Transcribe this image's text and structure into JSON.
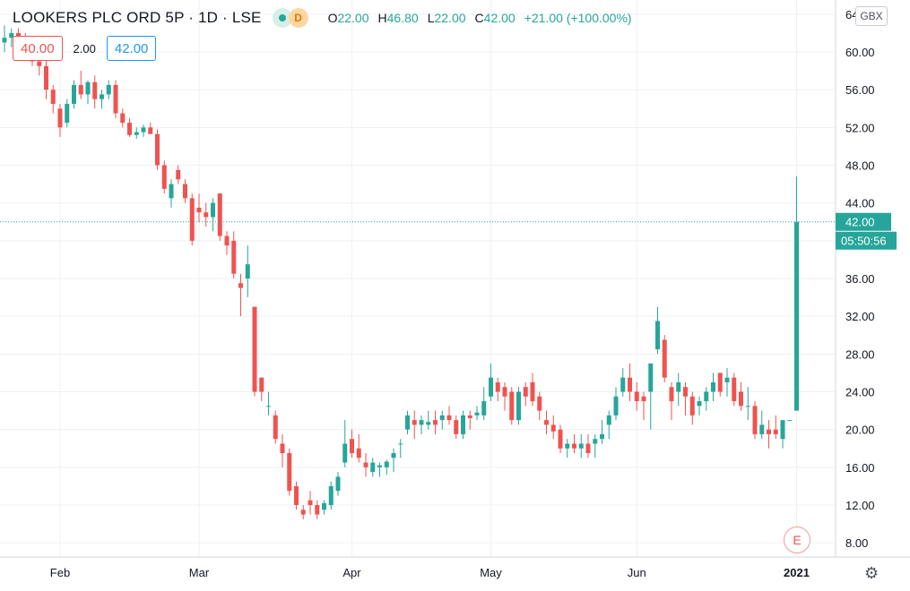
{
  "header": {
    "symbol": "LOOKERS PLC ORD 5P · 1D · LSE",
    "status_badge": "D",
    "ohlc": {
      "open_label": "O",
      "open": "22.00",
      "high_label": "H",
      "high": "46.80",
      "low_label": "L",
      "low": "22.00",
      "close_label": "C",
      "close": "42.00",
      "change": "+21.00 (+100.00%)"
    }
  },
  "trade": {
    "sell_price": "40.00",
    "spread": "2.00",
    "buy_price": "42.00"
  },
  "currency_button": "GBX",
  "price_label": "42.00",
  "countdown_label": "05:50:56",
  "earnings_marker": "E",
  "settings_icon": "gear-icon",
  "colors": {
    "up": "#26a69a",
    "down": "#ef5350",
    "grid": "#eef0f3",
    "price_line": "#26a69a"
  },
  "chart_data": {
    "type": "candlestick",
    "title": "LOOKERS PLC ORD 5P · 1D · LSE",
    "ylabel": "GBX",
    "ylim": [
      6.5,
      65.5
    ],
    "y_ticks": [
      8,
      12,
      16,
      20,
      24,
      28,
      32,
      36,
      40,
      44,
      48,
      52,
      56,
      60,
      64
    ],
    "y_tick_labels": [
      "8.00",
      "12.00",
      "16.00",
      "20.00",
      "24.00",
      "28.00",
      "32.00",
      "36.00",
      "",
      "44.00",
      "48.00",
      "52.00",
      "56.00",
      "60.00",
      "64.00"
    ],
    "top_tick_label": "6",
    "x_tick_labels": [
      {
        "label": "Feb",
        "index": 8
      },
      {
        "label": "Mar",
        "index": 28
      },
      {
        "label": "Apr",
        "index": 50
      },
      {
        "label": "May",
        "index": 70
      },
      {
        "label": "Jun",
        "index": 91
      },
      {
        "label": "2021",
        "index": 114
      }
    ],
    "last_price": 42.0,
    "candles": [
      [
        61.0,
        62.8,
        60.0,
        61.5
      ],
      [
        61.5,
        62.5,
        60.5,
        62.0
      ],
      [
        62.0,
        62.5,
        60.0,
        60.8
      ],
      [
        60.8,
        62.0,
        59.5,
        60.0
      ],
      [
        60.0,
        61.0,
        58.5,
        59.0
      ],
      [
        59.0,
        60.5,
        57.5,
        58.5
      ],
      [
        58.5,
        60.0,
        55.0,
        56.0
      ],
      [
        56.0,
        56.5,
        53.5,
        54.5
      ],
      [
        54.0,
        54.5,
        51.0,
        52.0
      ],
      [
        52.5,
        55.0,
        52.0,
        54.5
      ],
      [
        54.5,
        57.0,
        54.0,
        56.5
      ],
      [
        56.5,
        58.0,
        55.0,
        55.5
      ],
      [
        55.5,
        57.0,
        54.5,
        56.8
      ],
      [
        56.8,
        57.5,
        54.0,
        55.0
      ],
      [
        55.0,
        56.0,
        54.0,
        55.5
      ],
      [
        55.5,
        57.0,
        55.0,
        56.5
      ],
      [
        56.5,
        57.0,
        53.0,
        53.5
      ],
      [
        53.5,
        54.0,
        52.0,
        52.5
      ],
      [
        52.5,
        53.0,
        51.0,
        51.2
      ],
      [
        51.2,
        52.0,
        50.8,
        51.5
      ],
      [
        51.5,
        52.3,
        51.0,
        52.0
      ],
      [
        52.0,
        52.5,
        51.5,
        51.3
      ],
      [
        51.3,
        51.8,
        47.5,
        48.0
      ],
      [
        48.0,
        48.5,
        45.0,
        45.5
      ],
      [
        44.5,
        46.5,
        43.5,
        46.0
      ],
      [
        47.5,
        48.0,
        46.0,
        46.5
      ],
      [
        46.0,
        46.5,
        44.0,
        44.5
      ],
      [
        44.5,
        45.0,
        39.5,
        40.0
      ],
      [
        43.5,
        45.0,
        42.0,
        43.0
      ],
      [
        43.0,
        44.0,
        41.5,
        42.5
      ],
      [
        42.5,
        44.5,
        41.0,
        44.0
      ],
      [
        45.0,
        45.0,
        40.0,
        40.5
      ],
      [
        40.5,
        41.0,
        38.5,
        39.5
      ],
      [
        40.0,
        41.0,
        36.0,
        36.5
      ],
      [
        35.5,
        36.5,
        32.0,
        35.0
      ],
      [
        36.0,
        39.5,
        34.0,
        37.5
      ],
      [
        33.0,
        33.0,
        23.5,
        24.0
      ],
      [
        25.5,
        25.5,
        23.0,
        24.0
      ],
      [
        22.5,
        24.0,
        21.5,
        22.5
      ],
      [
        21.5,
        22.0,
        18.5,
        19.0
      ],
      [
        18.5,
        19.5,
        16.0,
        17.5
      ],
      [
        17.5,
        18.0,
        13.0,
        13.5
      ],
      [
        14.0,
        14.5,
        11.5,
        12.0
      ],
      [
        11.5,
        12.0,
        10.5,
        11.0
      ],
      [
        12.5,
        13.5,
        11.0,
        12.0
      ],
      [
        12.0,
        12.5,
        10.5,
        11.0
      ],
      [
        11.5,
        12.5,
        11.0,
        12.2
      ],
      [
        12.0,
        14.5,
        11.5,
        14.0
      ],
      [
        13.5,
        15.5,
        13.0,
        15.0
      ],
      [
        16.5,
        21.0,
        16.0,
        18.5
      ],
      [
        19.0,
        20.0,
        17.0,
        17.5
      ],
      [
        18.0,
        19.5,
        16.5,
        17.0
      ],
      [
        16.5,
        17.5,
        15.0,
        16.0
      ],
      [
        15.5,
        17.0,
        15.0,
        16.5
      ],
      [
        16.0,
        16.5,
        15.0,
        16.2
      ],
      [
        16.0,
        16.8,
        15.2,
        16.6
      ],
      [
        17.0,
        18.0,
        15.5,
        17.5
      ],
      [
        18.5,
        19.0,
        17.0,
        18.5
      ],
      [
        20.0,
        22.0,
        19.5,
        21.5
      ],
      [
        21.0,
        22.0,
        19.0,
        20.5
      ],
      [
        20.5,
        21.5,
        19.5,
        21.0
      ],
      [
        20.5,
        22.0,
        20.0,
        20.8
      ],
      [
        21.0,
        22.0,
        19.5,
        20.5
      ],
      [
        21.0,
        22.0,
        20.0,
        21.5
      ],
      [
        21.5,
        22.5,
        20.5,
        21.0
      ],
      [
        21.0,
        21.5,
        19.0,
        19.5
      ],
      [
        19.5,
        22.0,
        19.0,
        21.5
      ],
      [
        21.5,
        22.0,
        20.0,
        21.2
      ],
      [
        21.5,
        22.5,
        21.0,
        21.8
      ],
      [
        21.5,
        24.5,
        21.0,
        23.0
      ],
      [
        23.5,
        27.0,
        23.0,
        25.5
      ],
      [
        25.0,
        25.5,
        23.0,
        24.0
      ],
      [
        24.5,
        25.0,
        22.0,
        23.5
      ],
      [
        24.0,
        24.5,
        20.5,
        21.0
      ],
      [
        21.0,
        24.5,
        20.5,
        24.0
      ],
      [
        24.5,
        25.0,
        22.5,
        23.5
      ],
      [
        25.0,
        26.0,
        22.5,
        23.0
      ],
      [
        23.5,
        24.0,
        21.0,
        22.0
      ],
      [
        21.0,
        22.0,
        19.5,
        20.5
      ],
      [
        20.5,
        21.5,
        19.0,
        19.8
      ],
      [
        20.0,
        20.5,
        17.5,
        18.0
      ],
      [
        18.0,
        19.0,
        17.0,
        18.5
      ],
      [
        18.5,
        19.5,
        17.5,
        18.0
      ],
      [
        18.0,
        19.5,
        17.0,
        18.5
      ],
      [
        18.5,
        19.5,
        17.0,
        17.5
      ],
      [
        18.5,
        19.5,
        17.0,
        19.0
      ],
      [
        19.0,
        21.0,
        18.5,
        19.5
      ],
      [
        20.5,
        22.0,
        19.0,
        21.5
      ],
      [
        21.5,
        24.5,
        21.0,
        23.5
      ],
      [
        24.0,
        26.5,
        23.5,
        25.5
      ],
      [
        25.5,
        27.0,
        23.0,
        24.0
      ],
      [
        24.0,
        25.0,
        22.0,
        23.0
      ],
      [
        23.5,
        24.0,
        21.0,
        23.0
      ],
      [
        24.0,
        27.0,
        20.0,
        27.0
      ],
      [
        28.5,
        33.0,
        28.0,
        31.5
      ],
      [
        29.5,
        30.0,
        25.0,
        25.5
      ],
      [
        24.5,
        25.0,
        21.0,
        23.0
      ],
      [
        24.0,
        26.0,
        22.5,
        25.0
      ],
      [
        24.5,
        25.0,
        21.5,
        23.5
      ],
      [
        23.5,
        24.0,
        20.5,
        21.5
      ],
      [
        22.5,
        23.5,
        21.5,
        23.0
      ],
      [
        23.0,
        24.5,
        22.0,
        24.0
      ],
      [
        24.0,
        26.0,
        23.0,
        25.0
      ],
      [
        26.0,
        26.0,
        23.5,
        24.0
      ],
      [
        25.0,
        26.5,
        23.5,
        25.5
      ],
      [
        25.5,
        26.0,
        22.5,
        23.0
      ],
      [
        24.0,
        25.0,
        22.0,
        22.5
      ],
      [
        22.5,
        24.5,
        21.0,
        22.5
      ],
      [
        22.5,
        23.0,
        19.0,
        19.5
      ],
      [
        19.5,
        22.0,
        19.0,
        20.5
      ],
      [
        20.0,
        21.0,
        18.0,
        19.5
      ],
      [
        20.0,
        21.5,
        19.0,
        19.5
      ],
      [
        19.0,
        20.5,
        18.0,
        21.0
      ],
      [
        21.0,
        21.0,
        21.0,
        21.0
      ],
      [
        22.0,
        46.8,
        22.0,
        42.0
      ]
    ]
  }
}
